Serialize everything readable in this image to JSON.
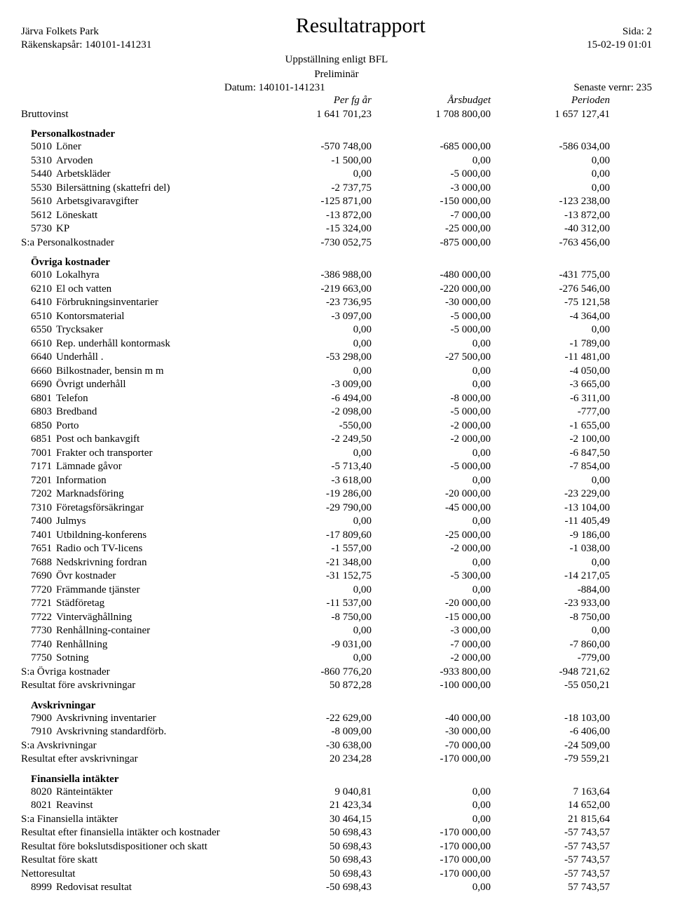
{
  "header": {
    "org": "Järva Folkets Park",
    "title": "Resultatrapport",
    "page_label": "Sida: 2",
    "fiscal_year": "Räkenskapsår: 140101-141231",
    "timestamp": "15-02-19  01:01",
    "line1": "Uppställning enligt BFL",
    "line2": "Preliminär",
    "date_range": "Datum: 140101-141231",
    "voucher": "Senaste vernr: 235",
    "col_labels": {
      "c3": "Per fg år",
      "c4": "Årsbudget",
      "c5": "Perioden"
    }
  },
  "bruttovinst": {
    "label": "Bruttovinst",
    "c3": "1 641 701,23",
    "c4": "1 708 800,00",
    "c5": "1 657 127,41"
  },
  "personalkostnader": {
    "heading": "Personalkostnader",
    "rows": [
      {
        "acct": "5010",
        "label": "Löner",
        "c3": "-570 748,00",
        "c4": "-685 000,00",
        "c5": "-586 034,00"
      },
      {
        "acct": "5310",
        "label": "Arvoden",
        "c3": "-1 500,00",
        "c4": "0,00",
        "c5": "0,00"
      },
      {
        "acct": "5440",
        "label": "Arbetskläder",
        "c3": "0,00",
        "c4": "-5 000,00",
        "c5": "0,00"
      },
      {
        "acct": "5530",
        "label": "Bilersättning (skattefri del)",
        "c3": "-2 737,75",
        "c4": "-3 000,00",
        "c5": "0,00"
      },
      {
        "acct": "5610",
        "label": "Arbetsgivaravgifter",
        "c3": "-125 871,00",
        "c4": "-150 000,00",
        "c5": "-123 238,00"
      },
      {
        "acct": "5612",
        "label": "Löneskatt",
        "c3": "-13 872,00",
        "c4": "-7 000,00",
        "c5": "-13 872,00"
      },
      {
        "acct": "5730",
        "label": "KP",
        "c3": "-15 324,00",
        "c4": "-25 000,00",
        "c5": "-40 312,00"
      }
    ],
    "sum": {
      "label": "S:a Personalkostnader",
      "c3": "-730 052,75",
      "c4": "-875 000,00",
      "c5": "-763 456,00"
    }
  },
  "ovriga_kostnader": {
    "heading": "Övriga kostnader",
    "rows": [
      {
        "acct": "6010",
        "label": "Lokalhyra",
        "c3": "-386 988,00",
        "c4": "-480 000,00",
        "c5": "-431 775,00"
      },
      {
        "acct": "6210",
        "label": "El och vatten",
        "c3": "-219 663,00",
        "c4": "-220 000,00",
        "c5": "-276 546,00"
      },
      {
        "acct": "6410",
        "label": "Förbrukningsinventarier",
        "c3": "-23 736,95",
        "c4": "-30 000,00",
        "c5": "-75 121,58"
      },
      {
        "acct": "6510",
        "label": "Kontorsmaterial",
        "c3": "-3 097,00",
        "c4": "-5 000,00",
        "c5": "-4 364,00"
      },
      {
        "acct": "6550",
        "label": "Trycksaker",
        "c3": "0,00",
        "c4": "-5 000,00",
        "c5": "0,00"
      },
      {
        "acct": "6610",
        "label": "Rep. underhåll kontormask",
        "c3": "0,00",
        "c4": "0,00",
        "c5": "-1 789,00"
      },
      {
        "acct": "6640",
        "label": "Underhåll .",
        "c3": "-53 298,00",
        "c4": "-27 500,00",
        "c5": "-11 481,00"
      },
      {
        "acct": "6660",
        "label": "Bilkostnader, bensin m m",
        "c3": "0,00",
        "c4": "0,00",
        "c5": "-4 050,00"
      },
      {
        "acct": "6690",
        "label": "Övrigt underhåll",
        "c3": "-3 009,00",
        "c4": "0,00",
        "c5": "-3 665,00"
      },
      {
        "acct": "6801",
        "label": "Telefon",
        "c3": "-6 494,00",
        "c4": "-8 000,00",
        "c5": "-6 311,00"
      },
      {
        "acct": "6803",
        "label": "Bredband",
        "c3": "-2 098,00",
        "c4": "-5 000,00",
        "c5": "-777,00"
      },
      {
        "acct": "6850",
        "label": "Porto",
        "c3": "-550,00",
        "c4": "-2 000,00",
        "c5": "-1 655,00"
      },
      {
        "acct": "6851",
        "label": "Post och bankavgift",
        "c3": "-2 249,50",
        "c4": "-2 000,00",
        "c5": "-2 100,00"
      },
      {
        "acct": "7001",
        "label": "Frakter och transporter",
        "c3": "0,00",
        "c4": "0,00",
        "c5": "-6 847,50"
      },
      {
        "acct": "7171",
        "label": "Lämnade gåvor",
        "c3": "-5 713,40",
        "c4": "-5 000,00",
        "c5": "-7 854,00"
      },
      {
        "acct": "7201",
        "label": "Information",
        "c3": "-3 618,00",
        "c4": "0,00",
        "c5": "0,00"
      },
      {
        "acct": "7202",
        "label": "Marknadsföring",
        "c3": "-19 286,00",
        "c4": "-20 000,00",
        "c5": "-23 229,00"
      },
      {
        "acct": "7310",
        "label": "Företagsförsäkringar",
        "c3": "-29 790,00",
        "c4": "-45 000,00",
        "c5": "-13 104,00"
      },
      {
        "acct": "7400",
        "label": "Julmys",
        "c3": "0,00",
        "c4": "0,00",
        "c5": "-11 405,49"
      },
      {
        "acct": "7401",
        "label": "Utbildning-konferens",
        "c3": "-17 809,60",
        "c4": "-25 000,00",
        "c5": "-9 186,00"
      },
      {
        "acct": "7651",
        "label": "Radio och TV-licens",
        "c3": "-1 557,00",
        "c4": "-2 000,00",
        "c5": "-1 038,00"
      },
      {
        "acct": "7688",
        "label": "Nedskrivning fordran",
        "c3": "-21 348,00",
        "c4": "0,00",
        "c5": "0,00"
      },
      {
        "acct": "7690",
        "label": "Övr kostnader",
        "c3": "-31 152,75",
        "c4": "-5 300,00",
        "c5": "-14 217,05"
      },
      {
        "acct": "7720",
        "label": "Främmande tjänster",
        "c3": "0,00",
        "c4": "0,00",
        "c5": "-884,00"
      },
      {
        "acct": "7721",
        "label": "Städföretag",
        "c3": "-11 537,00",
        "c4": "-20 000,00",
        "c5": "-23 933,00"
      },
      {
        "acct": "7722",
        "label": "Vinterväghållning",
        "c3": "-8 750,00",
        "c4": "-15 000,00",
        "c5": "-8 750,00"
      },
      {
        "acct": "7730",
        "label": "Renhållning-container",
        "c3": "0,00",
        "c4": "-3 000,00",
        "c5": "0,00"
      },
      {
        "acct": "7740",
        "label": "Renhållning",
        "c3": "-9 031,00",
        "c4": "-7 000,00",
        "c5": "-7 860,00"
      },
      {
        "acct": "7750",
        "label": "Sotning",
        "c3": "0,00",
        "c4": "-2 000,00",
        "c5": "-779,00"
      }
    ],
    "sum": {
      "label": "S:a Övriga kostnader",
      "c3": "-860 776,20",
      "c4": "-933 800,00",
      "c5": "-948 721,62"
    }
  },
  "resultat_fore_avskrivningar": {
    "label": "Resultat före avskrivningar",
    "c3": "50 872,28",
    "c4": "-100 000,00",
    "c5": "-55 050,21"
  },
  "avskrivningar": {
    "heading": "Avskrivningar",
    "rows": [
      {
        "acct": "7900",
        "label": "Avskrivning inventarier",
        "c3": "-22 629,00",
        "c4": "-40 000,00",
        "c5": "-18 103,00"
      },
      {
        "acct": "7910",
        "label": "Avskrivning standardförb.",
        "c3": "-8 009,00",
        "c4": "-30 000,00",
        "c5": "-6 406,00"
      }
    ],
    "sum": {
      "label": "S:a Avskrivningar",
      "c3": "-30 638,00",
      "c4": "-70 000,00",
      "c5": "-24 509,00"
    }
  },
  "resultat_efter_avskrivningar": {
    "label": "Resultat efter avskrivningar",
    "c3": "20 234,28",
    "c4": "-170 000,00",
    "c5": "-79 559,21"
  },
  "finansiella_intakter": {
    "heading": "Finansiella intäkter",
    "rows": [
      {
        "acct": "8020",
        "label": "Ränteintäkter",
        "c3": "9 040,81",
        "c4": "0,00",
        "c5": "7 163,64"
      },
      {
        "acct": "8021",
        "label": "Reavinst",
        "c3": "21 423,34",
        "c4": "0,00",
        "c5": "14 652,00"
      }
    ],
    "sum": {
      "label": "S:a Finansiella intäkter",
      "c3": "30 464,15",
      "c4": "0,00",
      "c5": "21 815,64"
    }
  },
  "totals": [
    {
      "label": "Resultat efter finansiella intäkter och kostnader",
      "c3": "50 698,43",
      "c4": "-170 000,00",
      "c5": "-57 743,57"
    },
    {
      "label": "Resultat före bokslutsdispositioner och skatt",
      "c3": "50 698,43",
      "c4": "-170 000,00",
      "c5": "-57 743,57"
    },
    {
      "label": "Resultat före skatt",
      "c3": "50 698,43",
      "c4": "-170 000,00",
      "c5": "-57 743,57"
    },
    {
      "label": "Nettoresultat",
      "c3": "50 698,43",
      "c4": "-170 000,00",
      "c5": "-57 743,57"
    }
  ],
  "redovisat": {
    "acct": "8999",
    "label": "Redovisat resultat",
    "c3": "-50 698,43",
    "c4": "0,00",
    "c5": "57 743,57"
  }
}
